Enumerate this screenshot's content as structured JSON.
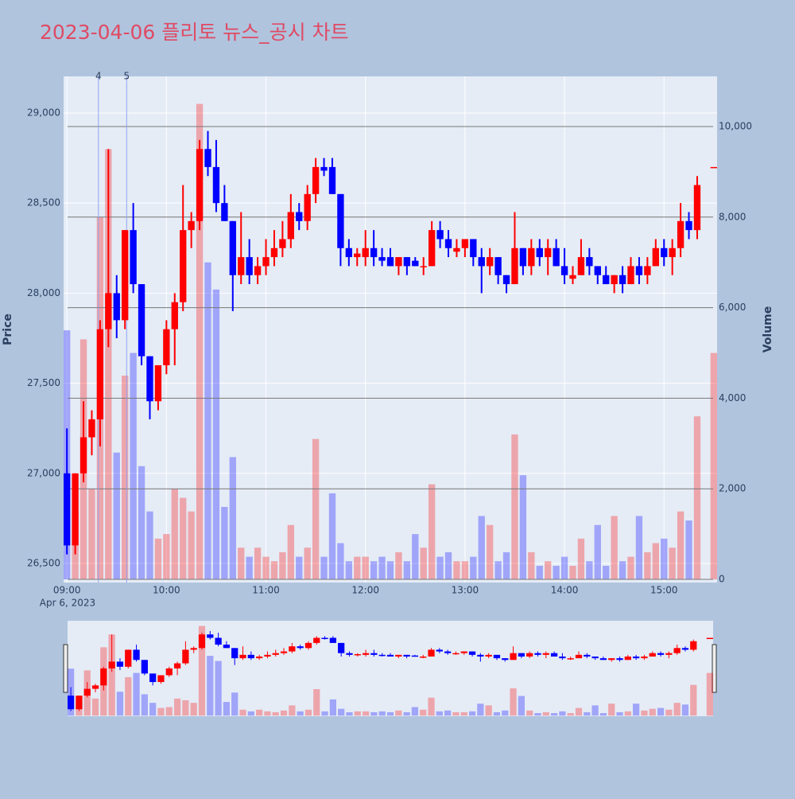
{
  "chart_data": {
    "type": "candlestick",
    "title": "2023-04-06 플리토 뉴스_공시 차트",
    "ylabel": "Price",
    "y2label": "Volume",
    "x_date_label": "Apr 6, 2023",
    "increasing_color": "#ff0000",
    "decreasing_color": "#0000ff",
    "rangeslider": true,
    "x": [
      "09:00",
      "09:05",
      "09:10",
      "09:15",
      "09:20",
      "09:25",
      "09:30",
      "09:35",
      "09:40",
      "09:45",
      "09:50",
      "09:55",
      "10:00",
      "10:05",
      "10:10",
      "10:15",
      "10:20",
      "10:25",
      "10:30",
      "10:35",
      "10:40",
      "10:45",
      "10:50",
      "10:55",
      "11:00",
      "11:05",
      "11:10",
      "11:15",
      "11:20",
      "11:25",
      "11:30",
      "11:35",
      "11:40",
      "11:45",
      "11:50",
      "11:55",
      "12:00",
      "12:05",
      "12:10",
      "12:15",
      "12:20",
      "12:25",
      "12:30",
      "12:35",
      "12:40",
      "12:45",
      "12:50",
      "12:55",
      "13:00",
      "13:05",
      "13:10",
      "13:15",
      "13:20",
      "13:25",
      "13:30",
      "13:35",
      "13:40",
      "13:45",
      "13:50",
      "13:55",
      "14:00",
      "14:05",
      "14:10",
      "14:15",
      "14:20",
      "14:25",
      "14:30",
      "14:35",
      "14:40",
      "14:45",
      "14:50",
      "14:55",
      "15:00",
      "15:05",
      "15:10",
      "15:15",
      "15:20",
      "15:30"
    ],
    "open": [
      27000,
      26600,
      27000,
      27200,
      27300,
      27800,
      28000,
      27850,
      28350,
      28050,
      27650,
      27400,
      27600,
      27800,
      27950,
      28350,
      28400,
      28800,
      28700,
      28500,
      28400,
      28100,
      28200,
      28100,
      28150,
      28200,
      28250,
      28300,
      28450,
      28400,
      28550,
      28700,
      28700,
      28550,
      28250,
      28200,
      28200,
      28250,
      28200,
      28200,
      28150,
      28200,
      28180,
      28150,
      28150,
      28350,
      28300,
      28230,
      28250,
      28300,
      28200,
      28150,
      28200,
      28100,
      28050,
      28250,
      28150,
      28250,
      28200,
      28250,
      28150,
      28080,
      28100,
      28200,
      28150,
      28100,
      28050,
      28100,
      28050,
      28150,
      28100,
      28150,
      28250,
      28200,
      28250,
      28400,
      28350,
      28700
    ],
    "high": [
      27250,
      27000,
      27400,
      27350,
      27850,
      28800,
      28100,
      28350,
      28500,
      28050,
      27650,
      27600,
      27850,
      28000,
      28600,
      28450,
      28850,
      28900,
      28850,
      28600,
      28400,
      28450,
      28300,
      28200,
      28300,
      28350,
      28400,
      28550,
      28500,
      28600,
      28750,
      28750,
      28750,
      28550,
      28300,
      28250,
      28350,
      28350,
      28250,
      28250,
      28200,
      28200,
      28200,
      28200,
      28400,
      28400,
      28350,
      28300,
      28300,
      28300,
      28250,
      28250,
      28200,
      28100,
      28450,
      28250,
      28300,
      28300,
      28300,
      28300,
      28250,
      28150,
      28300,
      28250,
      28150,
      28150,
      28100,
      28150,
      28200,
      28200,
      28200,
      28300,
      28300,
      28300,
      28500,
      28450,
      28650,
      28700
    ],
    "low": [
      26550,
      26550,
      26950,
      27100,
      27150,
      27700,
      27750,
      27800,
      28000,
      27600,
      27300,
      27350,
      27550,
      27600,
      27900,
      28250,
      28350,
      28650,
      28450,
      28400,
      27900,
      28050,
      28050,
      28050,
      28100,
      28150,
      28200,
      28250,
      28350,
      28350,
      28500,
      28650,
      28550,
      28150,
      28150,
      28150,
      28150,
      28150,
      28150,
      28150,
      28100,
      28100,
      28150,
      28100,
      28150,
      28250,
      28200,
      28200,
      28200,
      28150,
      28000,
      28100,
      28050,
      28000,
      28050,
      28100,
      28100,
      28150,
      28100,
      28150,
      28050,
      28050,
      28100,
      28100,
      28050,
      28050,
      28000,
      28000,
      28050,
      28050,
      28050,
      28150,
      28150,
      28100,
      28200,
      28300,
      28300,
      28700
    ],
    "close": [
      26600,
      27000,
      27200,
      27300,
      27800,
      28000,
      27850,
      28350,
      28050,
      27650,
      27400,
      27600,
      27800,
      27950,
      28350,
      28400,
      28800,
      28700,
      28500,
      28400,
      28100,
      28200,
      28100,
      28150,
      28200,
      28250,
      28300,
      28450,
      28400,
      28550,
      28700,
      28680,
      28550,
      28250,
      28200,
      28220,
      28250,
      28200,
      28180,
      28150,
      28200,
      28150,
      28150,
      28150,
      28350,
      28300,
      28250,
      28250,
      28300,
      28200,
      28150,
      28200,
      28100,
      28050,
      28250,
      28150,
      28250,
      28200,
      28250,
      28150,
      28100,
      28100,
      28200,
      28150,
      28100,
      28050,
      28100,
      28050,
      28150,
      28100,
      28150,
      28250,
      28200,
      28250,
      28400,
      28350,
      28600,
      28700
    ],
    "volume": [
      5500,
      1500,
      5300,
      2000,
      8000,
      9500,
      2800,
      4500,
      5000,
      2500,
      1500,
      900,
      1000,
      2000,
      1800,
      1500,
      10500,
      7000,
      6400,
      1600,
      2700,
      700,
      500,
      700,
      500,
      400,
      600,
      1200,
      500,
      700,
      3100,
      500,
      1900,
      800,
      400,
      500,
      500,
      400,
      500,
      400,
      600,
      400,
      1000,
      700,
      2100,
      500,
      600,
      400,
      400,
      500,
      1400,
      1200,
      400,
      600,
      3200,
      2300,
      600,
      300,
      400,
      300,
      500,
      300,
      900,
      400,
      1200,
      300,
      1400,
      400,
      500,
      1400,
      600,
      800,
      900,
      700,
      1500,
      1300,
      3600,
      5000
    ],
    "xlim": [
      "08:58",
      "15:32"
    ],
    "xticks": [
      "09:00",
      "10:00",
      "11:00",
      "12:00",
      "13:00",
      "14:00",
      "15:00"
    ],
    "ylim": [
      26394,
      29203
    ],
    "yticks": [
      {
        "value": 26500,
        "label": "26,500"
      },
      {
        "value": 27000,
        "label": "27,000"
      },
      {
        "value": 27500,
        "label": "27,500"
      },
      {
        "value": 28000,
        "label": "28,000"
      },
      {
        "value": 28500,
        "label": "28,500"
      },
      {
        "value": 29000,
        "label": "29,000"
      }
    ],
    "y2lim": [
      -70,
      11107
    ],
    "y2ticks": [
      0,
      {
        "value": 2000,
        "label": "2,000"
      },
      {
        "value": 4000,
        "label": "4,000"
      },
      {
        "value": 6000,
        "label": "6,000"
      },
      {
        "value": 8000,
        "label": "8,000"
      },
      {
        "value": 10000,
        "label": "10,000"
      }
    ],
    "annotations": [
      {
        "x": "09:19",
        "text": "4"
      },
      {
        "x": "09:36",
        "text": "5"
      }
    ]
  }
}
